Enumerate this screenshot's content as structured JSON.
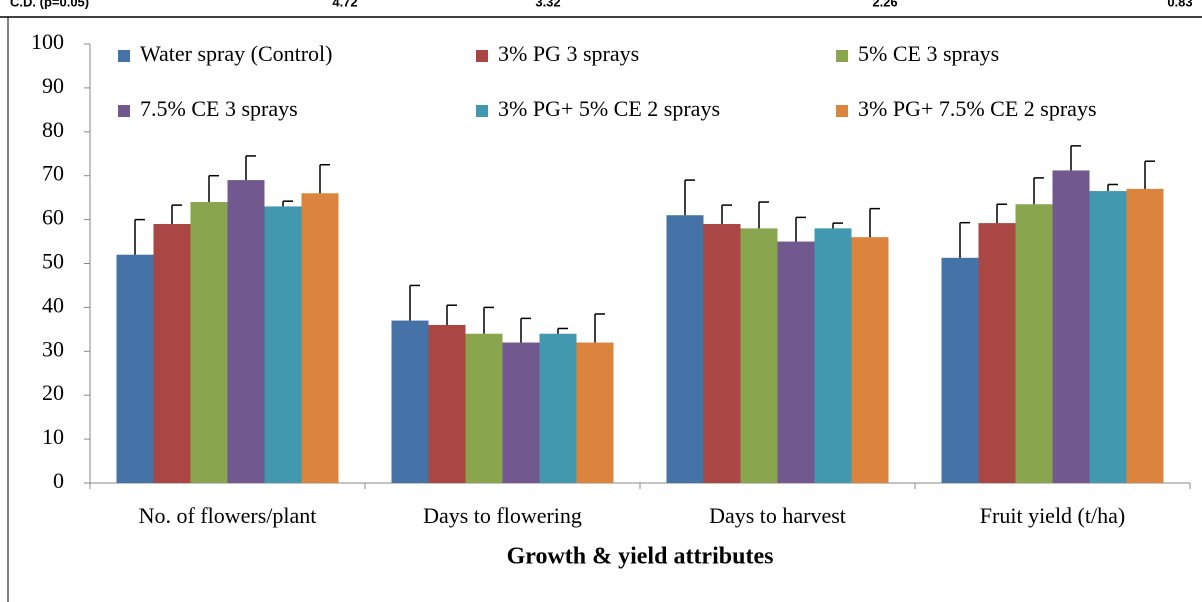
{
  "cropped_row": {
    "label": "C.D. (p=0.05)",
    "values": [
      4.72,
      3.32,
      2.26,
      0.83
    ]
  },
  "chart_data": {
    "type": "bar",
    "x_label": "Growth & yield attributes",
    "categories": [
      "No. of flowers/plant",
      "Days to flowering",
      "Days to harvest",
      "Fruit yield (t/ha)"
    ],
    "series": [
      {
        "name": "Water spray (Control)",
        "color": "#4572a7",
        "values": [
          52,
          37,
          61,
          51.3
        ],
        "errors": [
          8,
          8,
          8,
          8
        ]
      },
      {
        "name": "3% PG 3 sprays",
        "color": "#aa4643",
        "values": [
          59,
          36,
          59,
          59.2
        ],
        "errors": [
          4.3,
          4.5,
          4.3,
          4.3
        ]
      },
      {
        "name": "5% CE 3 sprays",
        "color": "#89a54e",
        "values": [
          64,
          34,
          58,
          63.5
        ],
        "errors": [
          6,
          6,
          6,
          6
        ]
      },
      {
        "name": "7.5% CE 3 sprays",
        "color": "#71588f",
        "values": [
          69,
          32,
          55,
          71.2
        ],
        "errors": [
          5.5,
          5.5,
          5.5,
          5.6
        ]
      },
      {
        "name": "3% PG+ 5% CE 2 sprays",
        "color": "#4198af",
        "values": [
          63,
          34,
          58,
          66.5
        ],
        "errors": [
          1.2,
          1.2,
          1.2,
          1.5
        ]
      },
      {
        "name": "3% PG+ 7.5% CE 2 sprays",
        "color": "#db843d",
        "values": [
          66,
          32,
          56,
          67
        ],
        "errors": [
          6.5,
          6.5,
          6.5,
          6.3
        ]
      }
    ],
    "ylim": [
      0,
      100
    ],
    "yticks": [
      0,
      10,
      20,
      30,
      40,
      50,
      60,
      70,
      80,
      90,
      100
    ],
    "grid": false
  }
}
